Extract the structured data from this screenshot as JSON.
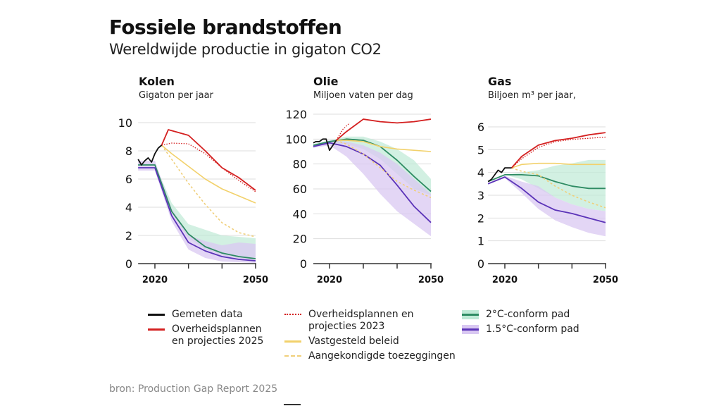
{
  "header": {
    "title": "Fossiele brandstoffen",
    "subtitle": "Wereldwijde productie in gigaton CO2"
  },
  "colors": {
    "measured": "#111111",
    "gov2025": "#d42020",
    "gov2023": "#d42020",
    "policy": "#f2d16b",
    "pledges": "#f0cf7a",
    "c2": "#2e8b63",
    "c2_band": "#bfead6",
    "c15": "#5b33b8",
    "c15_band": "#d9c8f2",
    "overlap_band": "#b4bfe0"
  },
  "chart_data": [
    {
      "type": "line",
      "title": "Kolen",
      "ylabel": "Gigaton per jaar",
      "xlim": [
        2015,
        2050
      ],
      "ylim": [
        0,
        10
      ],
      "yticks": [
        0,
        2,
        4,
        6,
        8,
        10
      ],
      "xticks": [
        2020,
        2030,
        2040,
        2050
      ],
      "xticklabels": [
        "2020",
        "",
        "",
        "2050"
      ],
      "grid": true,
      "series": [
        {
          "name": "Gemeten data",
          "key": "measured",
          "style": "solid",
          "x": [
            2015,
            2016,
            2017,
            2018,
            2019,
            2020,
            2021,
            2022
          ],
          "y": [
            7.4,
            7.0,
            7.3,
            7.5,
            7.2,
            7.8,
            8.2,
            8.4
          ]
        },
        {
          "name": "Overheidsplannen en projecties 2025",
          "key": "gov2025",
          "style": "solid",
          "x": [
            2022,
            2024,
            2030,
            2035,
            2040,
            2045,
            2050
          ],
          "y": [
            8.4,
            9.5,
            9.1,
            8.0,
            6.8,
            6.1,
            5.2
          ]
        },
        {
          "name": "Overheidsplannen en projecties 2023",
          "key": "gov2023",
          "style": "dotted",
          "x": [
            2022,
            2025,
            2030,
            2035,
            2040,
            2045,
            2050
          ],
          "y": [
            8.4,
            8.55,
            8.5,
            7.8,
            6.8,
            5.9,
            5.1
          ]
        },
        {
          "name": "Vastgesteld beleid",
          "key": "policy",
          "style": "solid",
          "x": [
            2022,
            2025,
            2030,
            2035,
            2040,
            2045,
            2050
          ],
          "y": [
            8.4,
            7.8,
            6.9,
            6.0,
            5.3,
            4.8,
            4.3
          ]
        },
        {
          "name": "Aangekondigde toezeggingen",
          "key": "pledges",
          "style": "dashed",
          "x": [
            2022,
            2025,
            2030,
            2035,
            2040,
            2045,
            2050
          ],
          "y": [
            8.4,
            7.4,
            5.7,
            4.2,
            2.9,
            2.2,
            1.9
          ]
        },
        {
          "name": "2°C-conform pad",
          "key": "c2",
          "style": "solid",
          "x": [
            2015,
            2020,
            2025,
            2030,
            2035,
            2040,
            2045,
            2050
          ],
          "y": [
            7.0,
            7.0,
            3.7,
            2.1,
            1.2,
            0.75,
            0.5,
            0.35
          ]
        },
        {
          "name": "1.5°C-conform pad",
          "key": "c15",
          "style": "solid",
          "x": [
            2015,
            2020,
            2025,
            2030,
            2035,
            2040,
            2045,
            2050
          ],
          "y": [
            6.8,
            6.8,
            3.4,
            1.5,
            0.9,
            0.5,
            0.3,
            0.2
          ]
        }
      ],
      "bands": [
        {
          "name": "2°C band",
          "key": "c2_band",
          "x": [
            2015,
            2020,
            2025,
            2030,
            2035,
            2040,
            2045,
            2050
          ],
          "low": [
            6.9,
            6.9,
            3.6,
            1.8,
            1.0,
            0.6,
            0.4,
            0.3
          ],
          "high": [
            7.1,
            7.1,
            4.3,
            2.8,
            2.4,
            2.0,
            1.9,
            1.8
          ]
        },
        {
          "name": "1.5°C band",
          "key": "c15_band",
          "x": [
            2015,
            2020,
            2025,
            2030,
            2035,
            2040,
            2045,
            2050
          ],
          "low": [
            6.6,
            6.6,
            3.0,
            1.0,
            0.4,
            0.15,
            0.1,
            0.05
          ],
          "high": [
            7.3,
            7.3,
            3.9,
            2.0,
            1.6,
            1.3,
            1.5,
            1.4
          ]
        }
      ]
    },
    {
      "type": "line",
      "title": "Olie",
      "ylabel": "Miljoen vaten per dag",
      "xlim": [
        2015,
        2050
      ],
      "ylim": [
        0,
        120
      ],
      "yticks": [
        0,
        20,
        40,
        60,
        80,
        100,
        120
      ],
      "xticks": [
        2020,
        2030,
        2040,
        2050
      ],
      "xticklabels": [
        "2020",
        "",
        "",
        "2050"
      ],
      "grid": true,
      "series": [
        {
          "name": "Gemeten data",
          "key": "measured",
          "style": "solid",
          "x": [
            2015,
            2016,
            2017,
            2018,
            2019,
            2020,
            2021,
            2022
          ],
          "y": [
            97,
            98,
            98,
            100,
            100,
            91,
            95,
            99
          ]
        },
        {
          "name": "Overheidsplannen en projecties 2025",
          "key": "gov2025",
          "style": "solid",
          "x": [
            2022,
            2025,
            2030,
            2035,
            2040,
            2045,
            2050
          ],
          "y": [
            99,
            106,
            116,
            114,
            113,
            114,
            116
          ]
        },
        {
          "name": "Overheidsplannen en projecties 2023",
          "key": "gov2023",
          "style": "dotted",
          "x": [
            2022,
            2024,
            2026
          ],
          "y": [
            99,
            108,
            113
          ]
        },
        {
          "name": "Vastgesteld beleid",
          "key": "policy",
          "style": "solid",
          "x": [
            2022,
            2025,
            2030,
            2035,
            2040,
            2045,
            2050
          ],
          "y": [
            99,
            99,
            98,
            94,
            92,
            91,
            90
          ]
        },
        {
          "name": "Aangekondigde toezeggingen",
          "key": "pledges",
          "style": "dashed",
          "x": [
            2022,
            2025,
            2030,
            2035,
            2040,
            2045,
            2050
          ],
          "y": [
            99,
            96,
            88,
            77,
            66,
            59,
            53
          ]
        },
        {
          "name": "2°C-conform pad",
          "key": "c2",
          "style": "solid",
          "x": [
            2015,
            2020,
            2025,
            2030,
            2035,
            2040,
            2045,
            2050
          ],
          "y": [
            95,
            98,
            100,
            99,
            94,
            83,
            70,
            58
          ]
        },
        {
          "name": "1.5°C-conform pad",
          "key": "c15",
          "style": "solid",
          "x": [
            2015,
            2020,
            2025,
            2030,
            2035,
            2040,
            2045,
            2050
          ],
          "y": [
            94,
            97,
            94,
            88,
            79,
            63,
            46,
            33
          ]
        }
      ],
      "bands": [
        {
          "name": "2°C band",
          "key": "c2_band",
          "x": [
            2015,
            2020,
            2025,
            2030,
            2035,
            2040,
            2045,
            2050
          ],
          "low": [
            95,
            97,
            96,
            92,
            84,
            72,
            60,
            55
          ],
          "high": [
            96,
            99,
            102,
            102,
            98,
            92,
            83,
            68
          ]
        },
        {
          "name": "1.5°C band",
          "key": "c15_band",
          "x": [
            2015,
            2020,
            2025,
            2030,
            2035,
            2040,
            2045,
            2050
          ],
          "low": [
            93,
            95,
            86,
            72,
            56,
            42,
            32,
            22
          ],
          "high": [
            95,
            99,
            98,
            95,
            89,
            80,
            68,
            56
          ]
        }
      ]
    },
    {
      "type": "line",
      "title": "Gas",
      "ylabel": "Biljoen m³ per jaar,",
      "xlim": [
        2015,
        2050
      ],
      "ylim": [
        0,
        6
      ],
      "yticks": [
        0,
        1,
        2,
        3,
        4,
        5,
        6
      ],
      "xticks": [
        2020,
        2030,
        2040,
        2050
      ],
      "xticklabels": [
        "2020",
        "",
        "",
        "2050"
      ],
      "grid": true,
      "series": [
        {
          "name": "Gemeten data",
          "key": "measured",
          "style": "solid",
          "x": [
            2015,
            2016,
            2017,
            2018,
            2019,
            2020,
            2021,
            2022
          ],
          "y": [
            3.6,
            3.7,
            3.9,
            4.1,
            4.0,
            4.2,
            4.2,
            4.2
          ]
        },
        {
          "name": "Overheidsplannen en projecties 2025",
          "key": "gov2025",
          "style": "solid",
          "x": [
            2022,
            2025,
            2030,
            2035,
            2040,
            2045,
            2050
          ],
          "y": [
            4.2,
            4.7,
            5.2,
            5.4,
            5.5,
            5.65,
            5.75
          ]
        },
        {
          "name": "Overheidsplannen en projecties 2023",
          "key": "gov2023",
          "style": "dotted",
          "x": [
            2022,
            2025,
            2030,
            2035,
            2040,
            2045,
            2050
          ],
          "y": [
            4.2,
            4.6,
            5.1,
            5.35,
            5.45,
            5.5,
            5.55
          ]
        },
        {
          "name": "Vastgesteld beleid",
          "key": "policy",
          "style": "solid",
          "x": [
            2022,
            2025,
            2030,
            2035,
            2040,
            2045,
            2050
          ],
          "y": [
            4.2,
            4.35,
            4.4,
            4.4,
            4.35,
            4.35,
            4.35
          ]
        },
        {
          "name": "Aangekondigde toezeggingen",
          "key": "pledges",
          "style": "dashed",
          "x": [
            2022,
            2025,
            2030,
            2035,
            2040,
            2045,
            2050
          ],
          "y": [
            4.2,
            4.05,
            3.9,
            3.4,
            3.0,
            2.7,
            2.45
          ]
        },
        {
          "name": "2°C-conform pad",
          "key": "c2",
          "style": "solid",
          "x": [
            2015,
            2020,
            2025,
            2030,
            2035,
            2040,
            2045,
            2050
          ],
          "y": [
            3.6,
            3.9,
            3.9,
            3.85,
            3.6,
            3.4,
            3.3,
            3.3
          ]
        },
        {
          "name": "1.5°C-conform pad",
          "key": "c15",
          "style": "solid",
          "x": [
            2015,
            2020,
            2025,
            2030,
            2035,
            2040,
            2045,
            2050
          ],
          "y": [
            3.5,
            3.8,
            3.3,
            2.7,
            2.35,
            2.2,
            2.0,
            1.8
          ]
        }
      ],
      "bands": [
        {
          "name": "2°C band",
          "key": "c2_band",
          "x": [
            2015,
            2020,
            2025,
            2030,
            2035,
            2040,
            2045,
            2050
          ],
          "low": [
            3.6,
            3.9,
            3.7,
            3.3,
            2.9,
            2.6,
            2.4,
            2.3
          ],
          "high": [
            3.6,
            3.9,
            4.0,
            4.1,
            4.3,
            4.4,
            4.55,
            4.55
          ]
        },
        {
          "name": "1.5°C band",
          "key": "c15_band",
          "x": [
            2015,
            2020,
            2025,
            2030,
            2035,
            2040,
            2045,
            2050
          ],
          "low": [
            3.5,
            3.75,
            3.1,
            2.4,
            1.9,
            1.6,
            1.35,
            1.2
          ],
          "high": [
            3.55,
            3.85,
            3.6,
            3.4,
            2.9,
            2.6,
            2.4,
            2.3
          ]
        }
      ]
    }
  ],
  "legend": {
    "col1": [
      {
        "key": "measured",
        "style": "solid",
        "label": "Gemeten data"
      },
      {
        "key": "gov2025",
        "style": "solid",
        "label": "Overheidsplannen en projecties 2025"
      }
    ],
    "col2": [
      {
        "key": "gov2023",
        "style": "dotted",
        "label": "Overheidsplannen en projecties 2023"
      },
      {
        "key": "policy",
        "style": "solid",
        "label": "Vastgesteld beleid"
      },
      {
        "key": "pledges",
        "style": "dashed",
        "label": "Aangekondigde toezeggingen"
      }
    ],
    "col3": [
      {
        "key": "c2",
        "band": "c2_band",
        "style": "solid",
        "label": "2°C-conform pad"
      },
      {
        "key": "c15",
        "band": "c15_band",
        "style": "solid",
        "label": "1.5°C-conform pad"
      }
    ]
  },
  "footer": {
    "source": "bron: Production Gap Report 2025"
  }
}
